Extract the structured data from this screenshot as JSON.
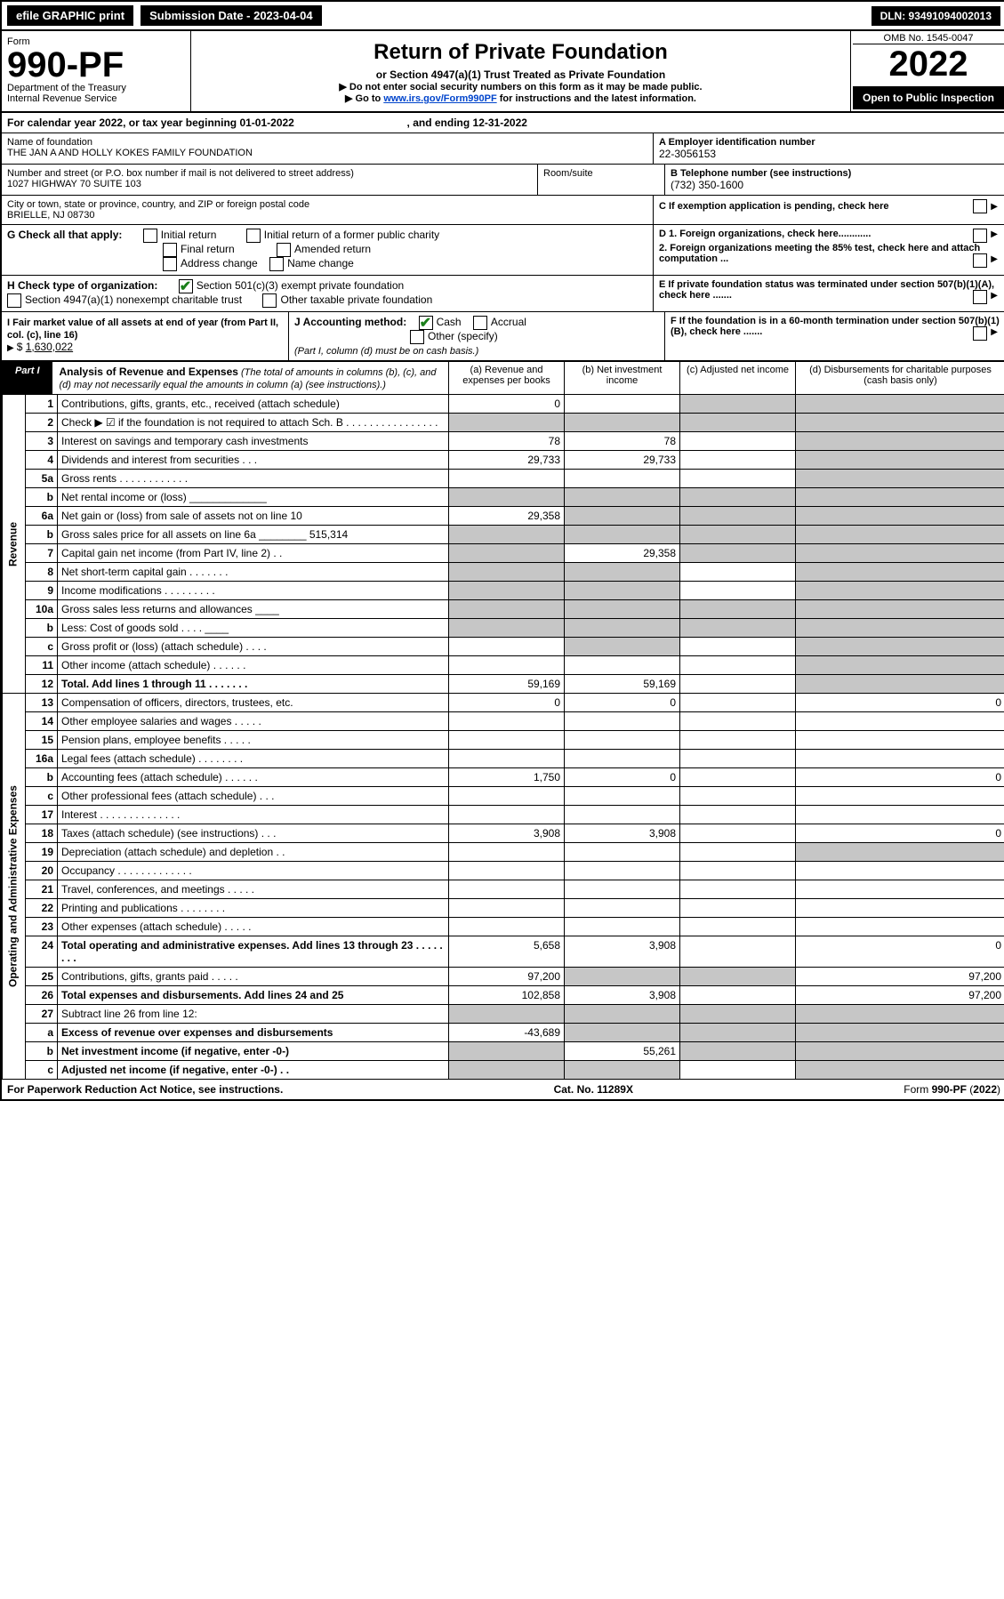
{
  "topbar": {
    "efile": "efile GRAPHIC print",
    "submission": "Submission Date - 2023-04-04",
    "dln": "DLN: 93491094002013"
  },
  "header": {
    "form_label": "Form",
    "form_number": "990-PF",
    "dept": "Department of the Treasury",
    "irs": "Internal Revenue Service",
    "title": "Return of Private Foundation",
    "subtitle": "or Section 4947(a)(1) Trust Treated as Private Foundation",
    "note1": "▶ Do not enter social security numbers on this form as it may be made public.",
    "note2_pre": "▶ Go to ",
    "note2_link": "www.irs.gov/Form990PF",
    "note2_post": " for instructions and the latest information.",
    "omb": "OMB No. 1545-0047",
    "year": "2022",
    "inspection": "Open to Public Inspection"
  },
  "calendar": {
    "text_pre": "For calendar year 2022, or tax year beginning ",
    "begin": "01-01-2022",
    "text_mid": " , and ending ",
    "end": "12-31-2022"
  },
  "identity": {
    "name_label": "Name of foundation",
    "name": "THE JAN A AND HOLLY KOKES FAMILY FOUNDATION",
    "addr_label": "Number and street (or P.O. box number if mail is not delivered to street address)",
    "addr": "1027 HIGHWAY 70 SUITE 103",
    "room_label": "Room/suite",
    "city_label": "City or town, state or province, country, and ZIP or foreign postal code",
    "city": "BRIELLE, NJ  08730",
    "a_label": "A Employer identification number",
    "a_val": "22-3056153",
    "b_label": "B Telephone number (see instructions)",
    "b_val": "(732) 350-1600",
    "c_label": "C If exemption application is pending, check here"
  },
  "g": {
    "label": "G Check all that apply:",
    "opts": [
      "Initial return",
      "Final return",
      "Address change",
      "Initial return of a former public charity",
      "Amended return",
      "Name change"
    ]
  },
  "h": {
    "label": "H Check type of organization:",
    "opt1": "Section 501(c)(3) exempt private foundation",
    "opt2": "Section 4947(a)(1) nonexempt charitable trust",
    "opt3": "Other taxable private foundation"
  },
  "i": {
    "label": "I Fair market value of all assets at end of year (from Part II, col. (c), line 16)",
    "val": "1,630,022"
  },
  "j": {
    "label": "J Accounting method:",
    "cash": "Cash",
    "accrual": "Accrual",
    "other": "Other (specify)",
    "note": "(Part I, column (d) must be on cash basis.)"
  },
  "d": {
    "d1": "D 1. Foreign organizations, check here............",
    "d2": "2. Foreign organizations meeting the 85% test, check here and attach computation ..."
  },
  "e": {
    "text": "E  If private foundation status was terminated under section 507(b)(1)(A), check here ......."
  },
  "f": {
    "text": "F  If the foundation is in a 60-month termination under section 507(b)(1)(B), check here ......."
  },
  "part1": {
    "label": "Part I",
    "title": "Analysis of Revenue and Expenses",
    "title_note": " (The total of amounts in columns (b), (c), and (d) may not necessarily equal the amounts in column (a) (see instructions).)",
    "col_a": "(a) Revenue and expenses per books",
    "col_b": "(b) Net investment income",
    "col_c": "(c) Adjusted net income",
    "col_d": "(d) Disbursements for charitable purposes (cash basis only)",
    "side_rev": "Revenue",
    "side_exp": "Operating and Administrative Expenses"
  },
  "rows": [
    {
      "n": "1",
      "desc": "Contributions, gifts, grants, etc., received (attach schedule)",
      "a": "0",
      "b": "",
      "c_shade": true,
      "d_shade": true
    },
    {
      "n": "2",
      "desc": "Check ▶ ☑ if the foundation is not required to attach Sch. B  . . . . . . . . . . . . . . . .",
      "a_shade": true,
      "b_shade": true,
      "c_shade": true,
      "d_shade": true
    },
    {
      "n": "3",
      "desc": "Interest on savings and temporary cash investments",
      "a": "78",
      "b": "78",
      "d_shade": true
    },
    {
      "n": "4",
      "desc": "Dividends and interest from securities  . . .",
      "a": "29,733",
      "b": "29,733",
      "d_shade": true
    },
    {
      "n": "5a",
      "desc": "Gross rents  . . . . . . . . . . . .",
      "d_shade": true
    },
    {
      "n": "b",
      "desc": "Net rental income or (loss)  _____________",
      "a_shade": true,
      "b_shade": true,
      "c_shade": true,
      "d_shade": true
    },
    {
      "n": "6a",
      "desc": "Net gain or (loss) from sale of assets not on line 10",
      "a": "29,358",
      "b_shade": true,
      "c_shade": true,
      "d_shade": true
    },
    {
      "n": "b",
      "desc": "Gross sales price for all assets on line 6a ________ 515,314",
      "a_shade": true,
      "b_shade": true,
      "c_shade": true,
      "d_shade": true
    },
    {
      "n": "7",
      "desc": "Capital gain net income (from Part IV, line 2)  . .",
      "a_shade": true,
      "b": "29,358",
      "c_shade": true,
      "d_shade": true
    },
    {
      "n": "8",
      "desc": "Net short-term capital gain  . . . . . . .",
      "a_shade": true,
      "b_shade": true,
      "d_shade": true
    },
    {
      "n": "9",
      "desc": "Income modifications  . . . . . . . . .",
      "a_shade": true,
      "b_shade": true,
      "d_shade": true
    },
    {
      "n": "10a",
      "desc": "Gross sales less returns and allowances  ____",
      "a_shade": true,
      "b_shade": true,
      "c_shade": true,
      "d_shade": true
    },
    {
      "n": "b",
      "desc": "Less: Cost of goods sold  . . . .  ____",
      "a_shade": true,
      "b_shade": true,
      "c_shade": true,
      "d_shade": true
    },
    {
      "n": "c",
      "desc": "Gross profit or (loss) (attach schedule)  . . . .",
      "a": "",
      "b_shade": true,
      "d_shade": true
    },
    {
      "n": "11",
      "desc": "Other income (attach schedule)  . . . . . .",
      "d_shade": true
    },
    {
      "n": "12",
      "desc": "Total. Add lines 1 through 11  . . . . . . .",
      "bold": true,
      "a": "59,169",
      "b": "59,169",
      "d_shade": true
    }
  ],
  "exp_rows": [
    {
      "n": "13",
      "desc": "Compensation of officers, directors, trustees, etc.",
      "a": "0",
      "b": "0",
      "d": "0"
    },
    {
      "n": "14",
      "desc": "Other employee salaries and wages  . . . . ."
    },
    {
      "n": "15",
      "desc": "Pension plans, employee benefits  . . . . ."
    },
    {
      "n": "16a",
      "desc": "Legal fees (attach schedule)  . . . . . . . ."
    },
    {
      "n": "b",
      "desc": "Accounting fees (attach schedule)  . . . . . .",
      "a": "1,750",
      "b": "0",
      "d": "0"
    },
    {
      "n": "c",
      "desc": "Other professional fees (attach schedule)  . . ."
    },
    {
      "n": "17",
      "desc": "Interest  . . . . . . . . . . . . . ."
    },
    {
      "n": "18",
      "desc": "Taxes (attach schedule) (see instructions)  . . .",
      "a": "3,908",
      "b": "3,908",
      "d": "0"
    },
    {
      "n": "19",
      "desc": "Depreciation (attach schedule) and depletion  . .",
      "d_shade": true
    },
    {
      "n": "20",
      "desc": "Occupancy  . . . . . . . . . . . . ."
    },
    {
      "n": "21",
      "desc": "Travel, conferences, and meetings  . . . . ."
    },
    {
      "n": "22",
      "desc": "Printing and publications  . . . . . . . ."
    },
    {
      "n": "23",
      "desc": "Other expenses (attach schedule)  . . . . ."
    },
    {
      "n": "24",
      "desc": "Total operating and administrative expenses. Add lines 13 through 23  . . . . . . . .",
      "bold": true,
      "a": "5,658",
      "b": "3,908",
      "d": "0"
    },
    {
      "n": "25",
      "desc": "Contributions, gifts, grants paid  . . . . .",
      "a": "97,200",
      "b_shade": true,
      "c_shade": true,
      "d": "97,200"
    },
    {
      "n": "26",
      "desc": "Total expenses and disbursements. Add lines 24 and 25",
      "bold": true,
      "a": "102,858",
      "b": "3,908",
      "d": "97,200"
    },
    {
      "n": "27",
      "desc": "Subtract line 26 from line 12:",
      "a_shade": true,
      "b_shade": true,
      "c_shade": true,
      "d_shade": true
    },
    {
      "n": "a",
      "desc": "Excess of revenue over expenses and disbursements",
      "bold": true,
      "a": "-43,689",
      "b_shade": true,
      "c_shade": true,
      "d_shade": true
    },
    {
      "n": "b",
      "desc": "Net investment income (if negative, enter -0-)",
      "bold": true,
      "a_shade": true,
      "b": "55,261",
      "c_shade": true,
      "d_shade": true
    },
    {
      "n": "c",
      "desc": "Adjusted net income (if negative, enter -0-)  . .",
      "bold": true,
      "a_shade": true,
      "b_shade": true,
      "d_shade": true
    }
  ],
  "footer": {
    "left": "For Paperwork Reduction Act Notice, see instructions.",
    "mid": "Cat. No. 11289X",
    "right": "Form 990-PF (2022)"
  }
}
